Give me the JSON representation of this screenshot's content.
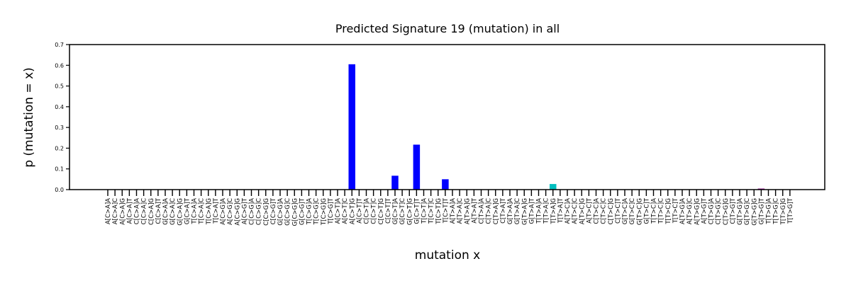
{
  "chart_data": {
    "type": "bar",
    "title": "Predicted Signature 19 (mutation) in all",
    "xlabel": "mutation x",
    "ylabel": "p (mutation = x)",
    "ylim": [
      0,
      0.7
    ],
    "yticks": [
      "0.0",
      "0.1",
      "0.2",
      "0.3",
      "0.4",
      "0.5",
      "0.6",
      "0.7"
    ],
    "grid": false,
    "categories": [
      "A[C>A]A",
      "A[C>A]C",
      "A[C>A]G",
      "A[C>A]T",
      "C[C>A]A",
      "C[C>A]C",
      "C[C>A]G",
      "C[C>A]T",
      "G[C>A]A",
      "G[C>A]C",
      "G[C>A]G",
      "G[C>A]T",
      "T[C>A]A",
      "T[C>A]C",
      "T[C>A]G",
      "T[C>A]T",
      "A[C>G]A",
      "A[C>G]C",
      "A[C>G]G",
      "A[C>G]T",
      "C[C>G]A",
      "C[C>G]C",
      "C[C>G]G",
      "C[C>G]T",
      "G[C>G]A",
      "G[C>G]C",
      "G[C>G]G",
      "G[C>G]T",
      "T[C>G]A",
      "T[C>G]C",
      "T[C>G]G",
      "T[C>G]T",
      "A[C>T]A",
      "A[C>T]C",
      "A[C>T]G",
      "A[C>T]T",
      "C[C>T]A",
      "C[C>T]C",
      "C[C>T]G",
      "C[C>T]T",
      "G[C>T]A",
      "G[C>T]C",
      "G[C>T]G",
      "G[C>T]T",
      "T[C>T]A",
      "T[C>T]C",
      "T[C>T]G",
      "T[C>T]T",
      "A[T>A]A",
      "A[T>A]C",
      "A[T>A]G",
      "A[T>A]T",
      "C[T>A]A",
      "C[T>A]C",
      "C[T>A]G",
      "C[T>A]T",
      "G[T>A]A",
      "G[T>A]C",
      "G[T>A]G",
      "G[T>A]T",
      "T[T>A]A",
      "T[T>A]C",
      "T[T>A]G",
      "T[T>A]T",
      "A[T>C]A",
      "A[T>C]C",
      "A[T>C]G",
      "A[T>C]T",
      "C[T>C]A",
      "C[T>C]C",
      "C[T>C]G",
      "C[T>C]T",
      "G[T>C]A",
      "G[T>C]C",
      "G[T>C]G",
      "G[T>C]T",
      "T[T>C]A",
      "T[T>C]C",
      "T[T>C]G",
      "T[T>C]T",
      "A[T>G]A",
      "A[T>G]C",
      "A[T>G]G",
      "A[T>G]T",
      "C[T>G]A",
      "C[T>G]C",
      "C[T>G]G",
      "C[T>G]T",
      "G[T>G]A",
      "G[T>G]C",
      "G[T>G]G",
      "G[T>G]T",
      "T[T>G]A",
      "T[T>G]C",
      "T[T>G]G",
      "T[T>G]T"
    ],
    "values": [
      0,
      0,
      0,
      0,
      0,
      0,
      0,
      0,
      0,
      0,
      0,
      0,
      0,
      0,
      0,
      0,
      0,
      0,
      0,
      0,
      0,
      0,
      0,
      0,
      0,
      0,
      0,
      0,
      0,
      0,
      0,
      0,
      0,
      0,
      0.605,
      0,
      0,
      0,
      0,
      0,
      0.067,
      0,
      0,
      0.217,
      0,
      0,
      0,
      0.05,
      0,
      0,
      0,
      0,
      0,
      0,
      0,
      0,
      0,
      0,
      0,
      0,
      0,
      0,
      0.027,
      0,
      0,
      0,
      0,
      0,
      0,
      0,
      0,
      0,
      0,
      0,
      0,
      0,
      0,
      0,
      0,
      0,
      0,
      0,
      0,
      0,
      0,
      0,
      0,
      0,
      0,
      0,
      0,
      0.005,
      0,
      0,
      0,
      0
    ],
    "colors": [
      "#0000ff",
      "#0000ff",
      "#0000ff",
      "#0000ff",
      "#0000ff",
      "#0000ff",
      "#0000ff",
      "#0000ff",
      "#0000ff",
      "#0000ff",
      "#0000ff",
      "#0000ff",
      "#0000ff",
      "#0000ff",
      "#0000ff",
      "#0000ff",
      "#0000ff",
      "#0000ff",
      "#0000ff",
      "#0000ff",
      "#0000ff",
      "#0000ff",
      "#0000ff",
      "#0000ff",
      "#0000ff",
      "#0000ff",
      "#0000ff",
      "#0000ff",
      "#0000ff",
      "#0000ff",
      "#0000ff",
      "#0000ff",
      "#0000ff",
      "#0000ff",
      "#0000ff",
      "#0000ff",
      "#0000ff",
      "#0000ff",
      "#0000ff",
      "#0000ff",
      "#0000ff",
      "#0000ff",
      "#0000ff",
      "#0000ff",
      "#0000ff",
      "#0000ff",
      "#0000ff",
      "#0000ff",
      "#00bfbf",
      "#00bfbf",
      "#00bfbf",
      "#00bfbf",
      "#00bfbf",
      "#00bfbf",
      "#00bfbf",
      "#00bfbf",
      "#00bfbf",
      "#00bfbf",
      "#00bfbf",
      "#00bfbf",
      "#00bfbf",
      "#00bfbf",
      "#00bfbf",
      "#00bfbf",
      "#00bfbf",
      "#00bfbf",
      "#00bfbf",
      "#00bfbf",
      "#00bfbf",
      "#00bfbf",
      "#00bfbf",
      "#00bfbf",
      "#00bfbf",
      "#00bfbf",
      "#00bfbf",
      "#00bfbf",
      "#00bfbf",
      "#00bfbf",
      "#00bfbf",
      "#00bfbf",
      "#8b008b",
      "#8b008b",
      "#8b008b",
      "#8b008b",
      "#8b008b",
      "#8b008b",
      "#8b008b",
      "#8b008b",
      "#8b008b",
      "#8b008b",
      "#8b008b",
      "#8b008b",
      "#8b008b",
      "#8b008b",
      "#8b008b",
      "#8b008b"
    ]
  }
}
